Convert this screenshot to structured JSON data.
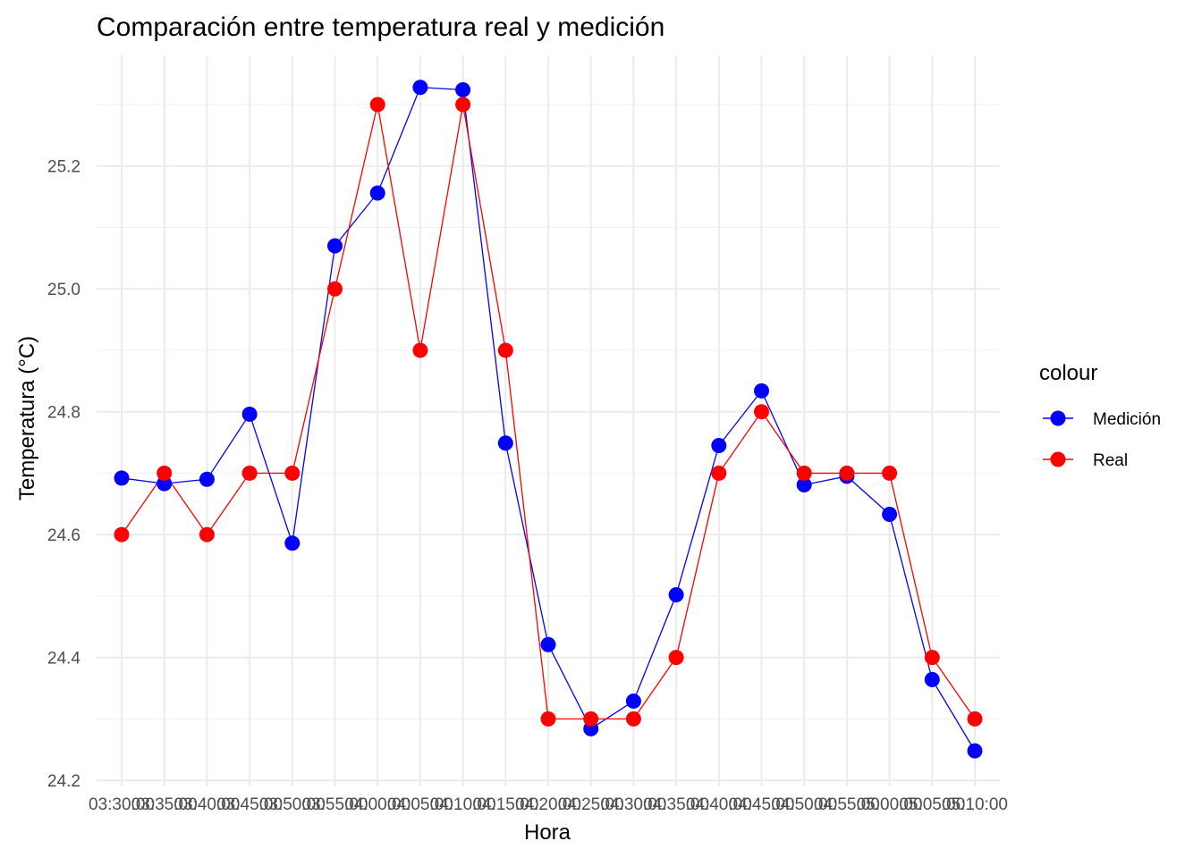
{
  "chart_data": {
    "type": "line",
    "title": "Comparación entre temperatura real y medición",
    "xlabel": "Hora",
    "ylabel": "Temperatura (°C)",
    "ylim": [
      24.19,
      25.38
    ],
    "yticks": [
      24.2,
      24.4,
      24.6,
      24.8,
      25.0,
      25.2
    ],
    "ytick_labels": [
      "24.2",
      "24.4",
      "24.6",
      "24.8",
      "25.0",
      "25.2"
    ],
    "categories": [
      "03:30:00",
      "03:35:00",
      "03:40:00",
      "03:45:00",
      "03:50:00",
      "03:55:00",
      "04:00:00",
      "04:05:00",
      "04:10:00",
      "04:15:00",
      "04:20:00",
      "04:25:00",
      "04:30:00",
      "04:35:00",
      "04:40:00",
      "04:45:00",
      "04:50:00",
      "04:55:00",
      "05:00:00",
      "05:05:00",
      "05:10:00"
    ],
    "grid": true,
    "legend": {
      "title": "colour",
      "placement": "right"
    },
    "series": [
      {
        "name": "Medición",
        "color": "#0000ff",
        "values": [
          24.692,
          24.683,
          24.69,
          24.796,
          24.586,
          25.07,
          25.156,
          25.328,
          25.324,
          24.749,
          24.421,
          24.284,
          24.329,
          24.502,
          24.745,
          24.834,
          24.681,
          24.695,
          24.633,
          24.364,
          24.248
        ]
      },
      {
        "name": "Real",
        "color": "#ff0000",
        "values": [
          24.6,
          24.7,
          24.6,
          24.7,
          24.7,
          25.0,
          25.3,
          24.9,
          25.3,
          24.9,
          24.3,
          24.3,
          24.3,
          24.4,
          24.7,
          24.8,
          24.7,
          24.7,
          24.7,
          24.4,
          24.3
        ]
      }
    ]
  }
}
